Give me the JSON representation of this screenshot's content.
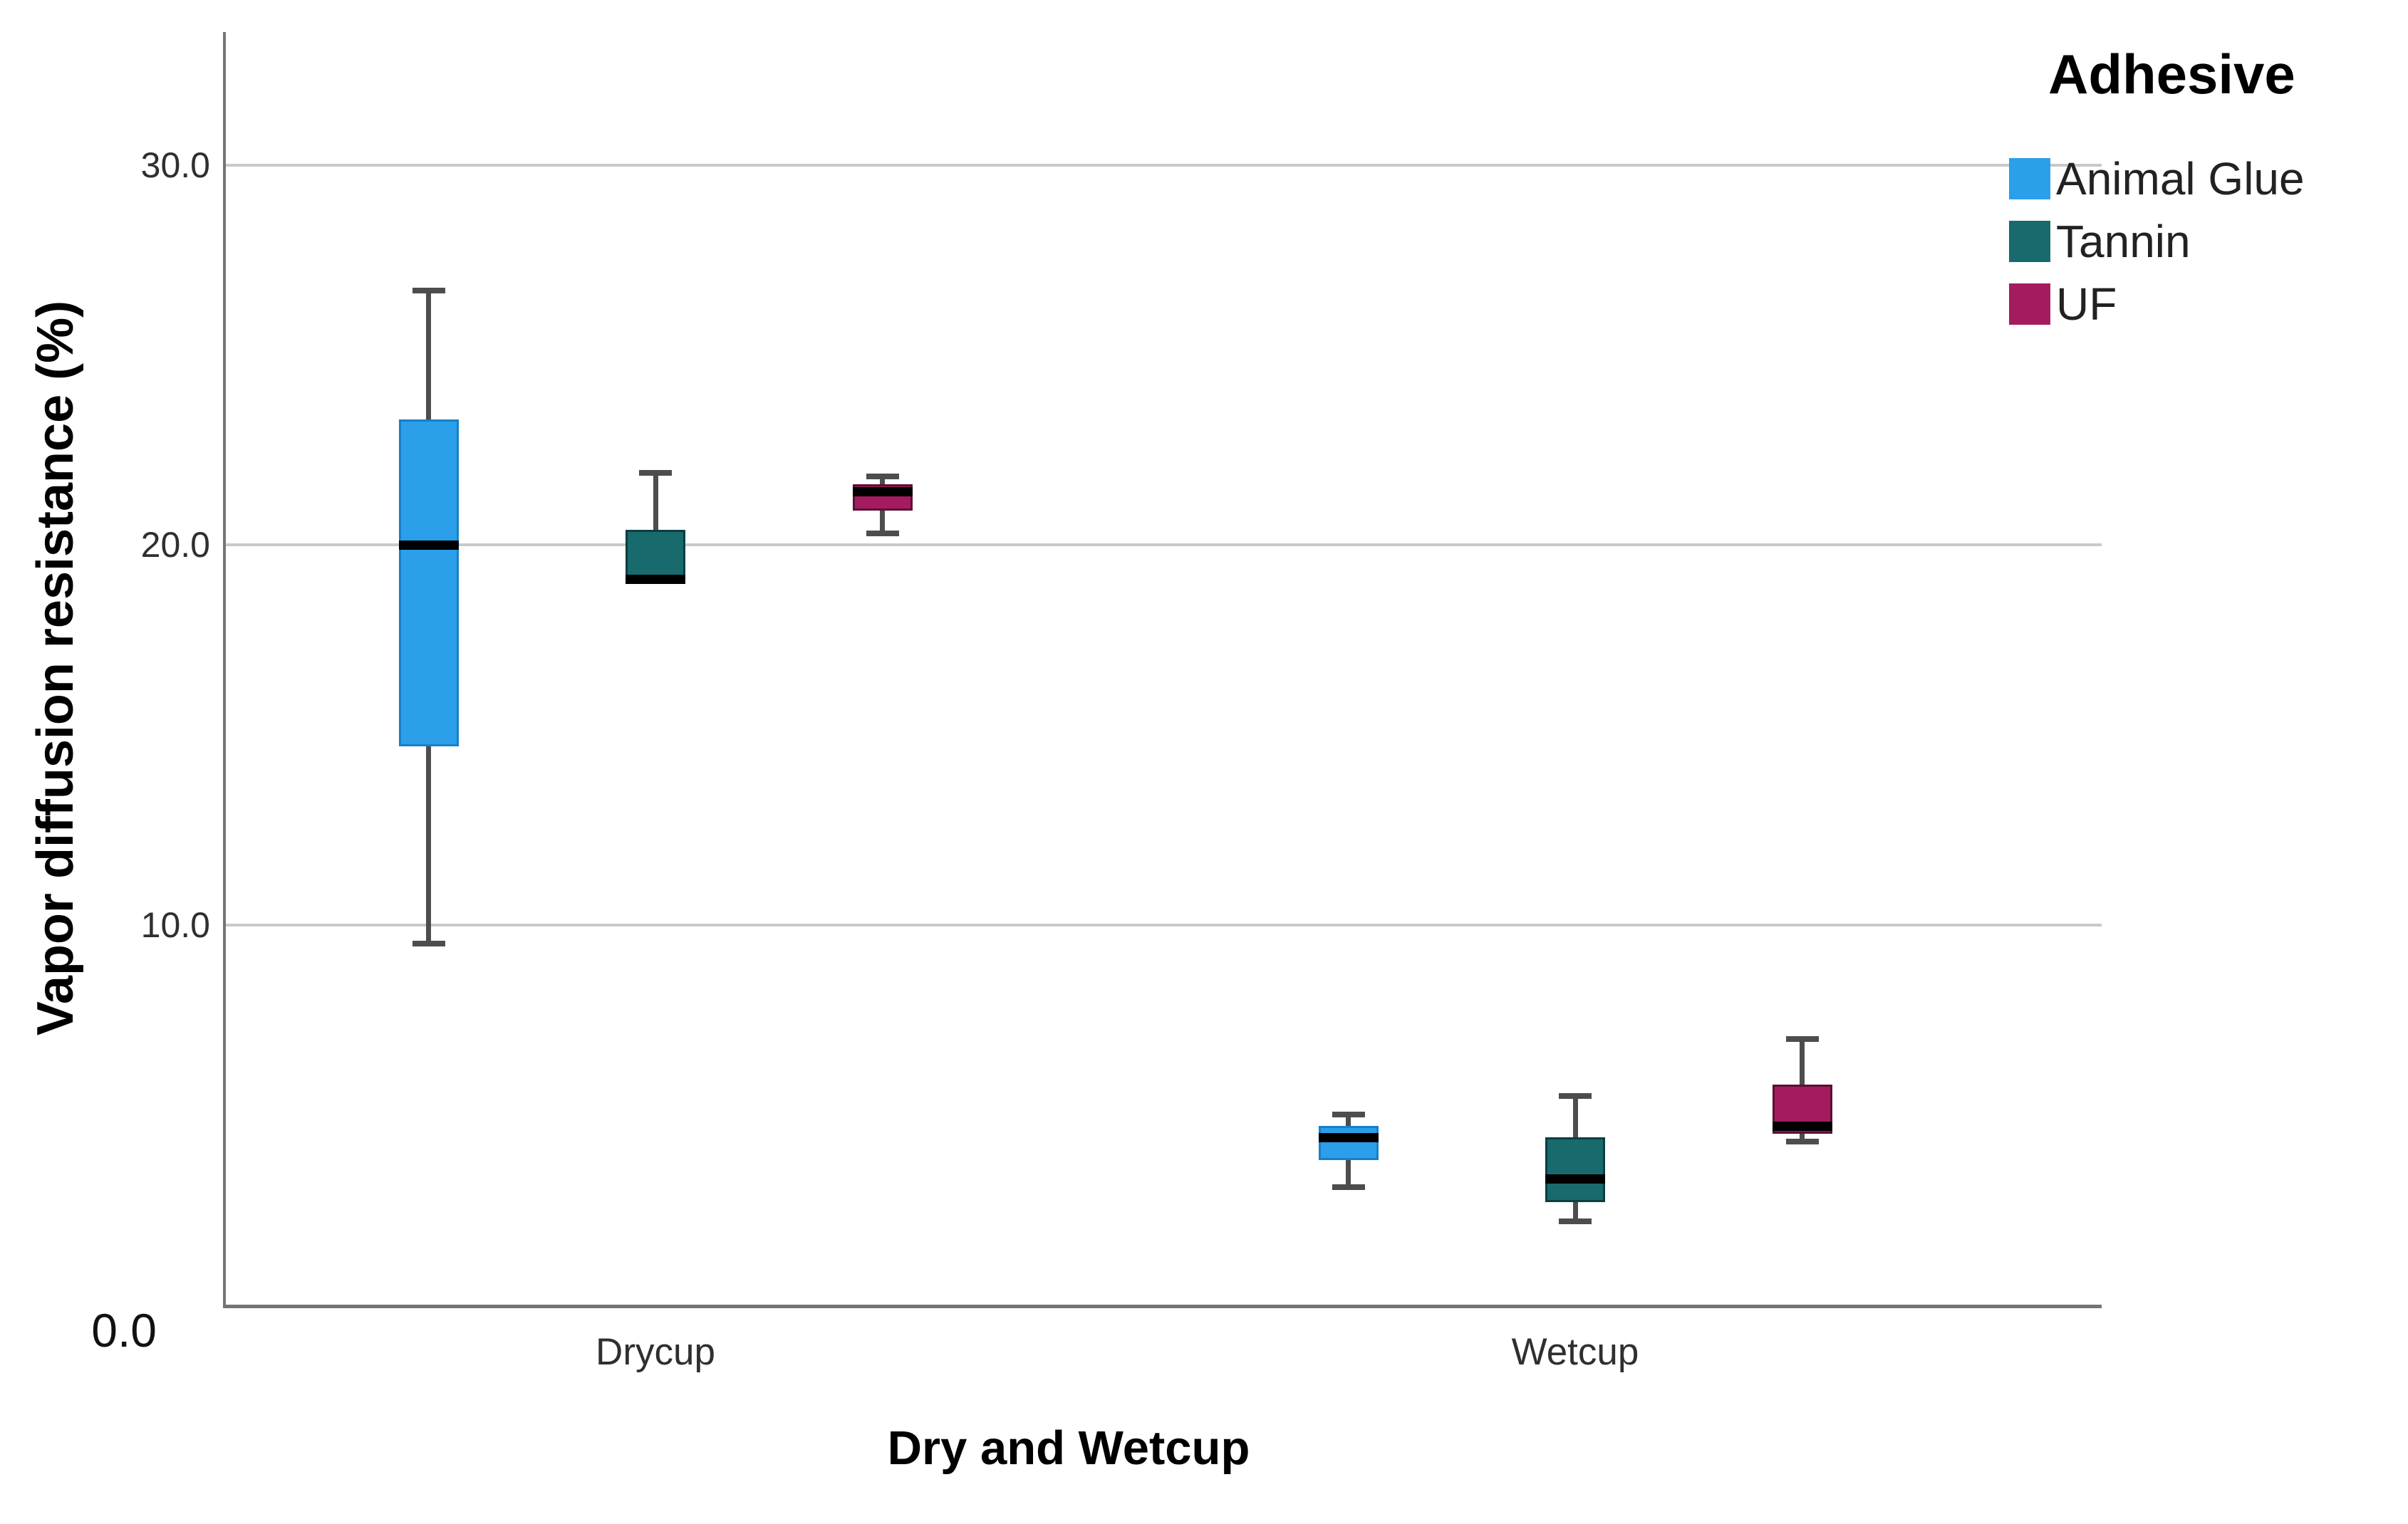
{
  "y_axis": {
    "label": "Vapor diffusion resistance (%)",
    "ticks": [
      {
        "label": "0.0",
        "value": 0
      },
      {
        "label": "10.0",
        "value": 10
      },
      {
        "label": "20.0",
        "value": 20
      },
      {
        "label": "30.0",
        "value": 30
      }
    ]
  },
  "x_axis": {
    "label": "Dry and Wetcup",
    "categories": [
      "Drycup",
      "Wetcup"
    ]
  },
  "legend": {
    "title": "Adhesive",
    "entries": [
      {
        "label": "Animal Glue",
        "color": "#2B9FE9"
      },
      {
        "label": "Tannin",
        "color": "#186A6C"
      },
      {
        "label": "UF",
        "color": "#A41B5F"
      }
    ]
  },
  "colors": {
    "gridline": "#c9c9c9",
    "axis": "#757575",
    "whisker": "#4d4d4d",
    "median": "#000000"
  },
  "chart_data": {
    "type": "box",
    "title": "",
    "xlabel": "Dry and Wetcup",
    "ylabel": "Vapor diffusion resistance (%)",
    "categories": [
      "Drycup",
      "Wetcup"
    ],
    "yticks": [
      0,
      10,
      20,
      30
    ],
    "ylim": [
      0,
      33.5
    ],
    "grid": "horizontal",
    "legend_position": "top-right",
    "series": [
      {
        "name": "Animal Glue",
        "color": "#2B9FE9",
        "border": "#1880C8",
        "boxes": [
          {
            "category": "Drycup",
            "min": 9.5,
            "q1": 14.7,
            "median": 20.0,
            "q3": 23.3,
            "max": 26.7
          },
          {
            "category": "Wetcup",
            "min": 3.1,
            "q1": 3.8,
            "median": 4.4,
            "q3": 4.7,
            "max": 5.0
          }
        ]
      },
      {
        "name": "Tannin",
        "color": "#186A6C",
        "border": "#0B3E40",
        "boxes": [
          {
            "category": "Drycup",
            "min": 19.0,
            "q1": 19.0,
            "median": 19.1,
            "q3": 20.4,
            "max": 21.9
          },
          {
            "category": "Wetcup",
            "min": 2.2,
            "q1": 2.7,
            "median": 3.3,
            "q3": 4.4,
            "max": 5.5
          }
        ]
      },
      {
        "name": "UF",
        "color": "#A41B5F",
        "border": "#5E0F36",
        "boxes": [
          {
            "category": "Drycup",
            "min": 20.3,
            "q1": 20.9,
            "median": 21.4,
            "q3": 21.6,
            "max": 21.8
          },
          {
            "category": "Wetcup",
            "min": 4.3,
            "q1": 4.5,
            "median": 4.7,
            "q3": 5.8,
            "max": 7.0
          }
        ]
      }
    ]
  }
}
